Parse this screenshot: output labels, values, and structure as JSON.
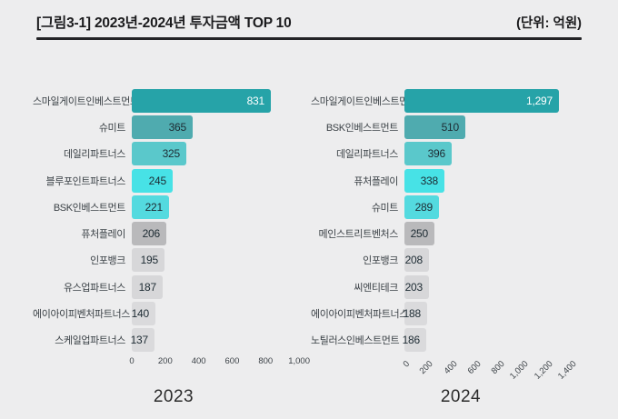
{
  "header": {
    "title": "[그림3-1] 2023년-2024년 투자금액 TOP 10",
    "unit": "(단위: 억원)"
  },
  "colors": {
    "background": "#EDEDEE",
    "divider": "#232326",
    "bar_palette": [
      "#26A3A8",
      "#4FABAF",
      "#5AC8CB",
      "#47E2E6",
      "#54DADF",
      "#B9B9BB",
      "#D7D7D9",
      "#D7D7D9",
      "#DADADC",
      "#DADADC"
    ],
    "value_text_on_dark": "#FFFFFF",
    "value_text": "#1D2B33",
    "category_text": "#3C4247",
    "axis_text": "#3C4247",
    "title_text": "#1B1B1D",
    "year_text": "#2B2B2B"
  },
  "chart_data": [
    {
      "type": "bar",
      "orientation": "horizontal",
      "title": "2023",
      "value_unit": "억원",
      "categories": [
        "스마일게이트인베스트먼트",
        "슈미트",
        "데일리파트너스",
        "블루포인트파트너스",
        "BSK인베스트먼트",
        "퓨처플레이",
        "인포뱅크",
        "유스업파트너스",
        "에이아이피벤처파트너스",
        "스케일업파트너스"
      ],
      "values": [
        831,
        365,
        325,
        245,
        221,
        206,
        195,
        187,
        140,
        137
      ],
      "value_labels": [
        "831",
        "365",
        "325",
        "245",
        "221",
        "206",
        "195",
        "187",
        "140",
        "137"
      ],
      "xlim": [
        0,
        1000
      ],
      "xticks": [
        0,
        200,
        400,
        600,
        800,
        1000
      ],
      "xtick_labels": [
        "0",
        "200",
        "400",
        "600",
        "800",
        "1,000"
      ],
      "tick_rotation": 0,
      "grid": false,
      "legend": false
    },
    {
      "type": "bar",
      "orientation": "horizontal",
      "title": "2024",
      "value_unit": "억원",
      "categories": [
        "스마일게이트인베스트먼트",
        "BSK인베스트먼트",
        "데일리파트너스",
        "퓨처플레이",
        "슈미트",
        "메인스트리트벤처스",
        "인포뱅크",
        "씨엔티테크",
        "에이아이피벤처파트너스",
        "노틸러스인베스트먼트"
      ],
      "values": [
        1297,
        510,
        396,
        338,
        289,
        250,
        208,
        203,
        188,
        186
      ],
      "value_labels": [
        "1,297",
        "510",
        "396",
        "338",
        "289",
        "250",
        "208",
        "203",
        "188",
        "186"
      ],
      "xlim": [
        0,
        1400
      ],
      "xticks": [
        0,
        200,
        400,
        600,
        800,
        1000,
        1200,
        1400
      ],
      "xtick_labels": [
        "0",
        "200",
        "400",
        "600",
        "800",
        "1,000",
        "1,200",
        "1,400"
      ],
      "tick_rotation": 45,
      "grid": false,
      "legend": false
    }
  ]
}
